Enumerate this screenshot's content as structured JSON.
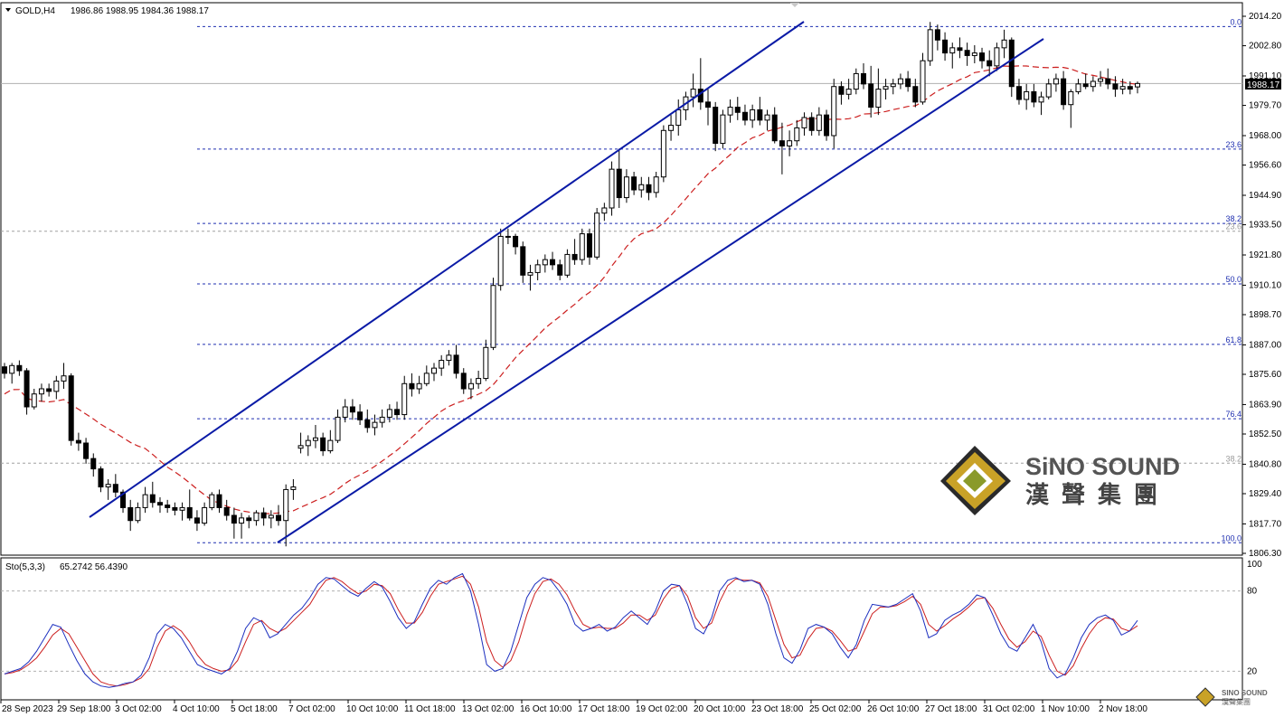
{
  "header": {
    "symbol": "GOLD,H4",
    "ohlc": "1986.86 1988.95 1984.36 1988.17",
    "price_tag": "1988.17"
  },
  "indicator": {
    "name": "Sto(5,3,3)",
    "values": "65.2742 56.4390",
    "levels": [
      "100",
      "80",
      "20"
    ]
  },
  "logo": {
    "line1": "SiNO SOUND",
    "line2": "漢聲集團",
    "small1": "SINO SOUND",
    "small2": "漢聲集團"
  },
  "colors": {
    "up": "#ffffff",
    "down": "#000000",
    "channel": "#0a1aa6",
    "fib": "#1f2fb0",
    "ma": "#cc1f1f",
    "stoch_main": "#1c2fbf",
    "stoch_signal": "#cc1f1f",
    "logo_gold": "#c9a227"
  },
  "chart_data": {
    "type": "candlestick",
    "price_axis": {
      "ticks": [
        "2014.20",
        "2002.80",
        "1991.10",
        "1979.70",
        "1968.00",
        "1956.60",
        "1944.90",
        "1933.50",
        "1921.80",
        "1910.10",
        "1898.70",
        "1887.00",
        "1875.60",
        "1863.90",
        "1852.50",
        "1840.80",
        "1829.40",
        "1817.70",
        "1806.30"
      ],
      "range": [
        1803,
        2019
      ]
    },
    "time_axis": {
      "ticks": [
        "28 Sep 2023",
        "29 Sep 18:00",
        "3 Oct 02:00",
        "4 Oct 10:00",
        "5 Oct 18:00",
        "7 Oct 02:00",
        "10 Oct 10:00",
        "11 Oct 18:00",
        "13 Oct 02:00",
        "16 Oct 10:00",
        "17 Oct 18:00",
        "19 Oct 02:00",
        "20 Oct 10:00",
        "23 Oct 18:00",
        "25 Oct 02:00",
        "26 Oct 10:00",
        "27 Oct 18:00",
        "31 Oct 02:00",
        "1 Nov 10:00",
        "2 Nov 18:00"
      ]
    },
    "fibonacci_1": [
      {
        "label": "0.0",
        "price": 2010.2
      },
      {
        "label": "23.6",
        "price": 1962.8
      },
      {
        "label": "38.2",
        "price": 1934.0
      },
      {
        "label": "50.0",
        "price": 1910.6
      },
      {
        "label": "61.8",
        "price": 1887.2
      },
      {
        "label": "76.4",
        "price": 1858.4
      },
      {
        "label": "100.0",
        "price": 1810.4
      }
    ],
    "fibonacci_2": [
      {
        "label": "23.6",
        "price": 1931.0
      },
      {
        "label": "38.2",
        "price": 1841.2
      }
    ],
    "current_price": 1988.17,
    "candles": [
      [
        1878.5,
        1880,
        1874,
        1876
      ],
      [
        1876,
        1880,
        1872,
        1879
      ],
      [
        1879,
        1881,
        1875,
        1877
      ],
      [
        1877,
        1878,
        1860,
        1863
      ],
      [
        1863,
        1870,
        1862,
        1868
      ],
      [
        1868,
        1872,
        1865,
        1870
      ],
      [
        1870,
        1872,
        1867,
        1869
      ],
      [
        1869,
        1875,
        1866,
        1873
      ],
      [
        1873,
        1880,
        1870,
        1875
      ],
      [
        1875,
        1876,
        1848,
        1850
      ],
      [
        1850,
        1853,
        1846,
        1849
      ],
      [
        1849,
        1851,
        1841,
        1843
      ],
      [
        1843,
        1845,
        1836,
        1839
      ],
      [
        1839,
        1840,
        1830,
        1832
      ],
      [
        1832,
        1835,
        1827,
        1833
      ],
      [
        1833,
        1837,
        1828,
        1830
      ],
      [
        1830,
        1831,
        1822,
        1824
      ],
      [
        1824,
        1827,
        1815,
        1819
      ],
      [
        1819,
        1826,
        1818,
        1824
      ],
      [
        1824,
        1832,
        1822,
        1829
      ],
      [
        1829,
        1834,
        1824,
        1826
      ],
      [
        1826,
        1828,
        1822,
        1825
      ],
      [
        1825,
        1827,
        1822,
        1824
      ],
      [
        1824,
        1826,
        1821,
        1823
      ],
      [
        1823,
        1826,
        1819,
        1824
      ],
      [
        1824,
        1831,
        1819,
        1820
      ],
      [
        1820,
        1823,
        1815,
        1818
      ],
      [
        1818,
        1826,
        1817,
        1824
      ],
      [
        1824,
        1830,
        1823,
        1829
      ],
      [
        1829,
        1831,
        1822,
        1824
      ],
      [
        1824,
        1827,
        1819,
        1821
      ],
      [
        1821,
        1824,
        1812,
        1818
      ],
      [
        1818,
        1822,
        1812,
        1820
      ],
      [
        1820,
        1821,
        1816,
        1819
      ],
      [
        1819,
        1823,
        1817,
        1822
      ],
      [
        1822,
        1824,
        1817,
        1820
      ],
      [
        1820,
        1823,
        1816,
        1821
      ],
      [
        1821,
        1825,
        1817,
        1819
      ],
      [
        1819,
        1833,
        1809,
        1831
      ],
      [
        1831,
        1835,
        1827,
        1832
      ],
      [
        1847,
        1853,
        1845,
        1848
      ],
      [
        1848,
        1852,
        1844,
        1850
      ],
      [
        1850,
        1856,
        1847,
        1851
      ],
      [
        1851,
        1853,
        1844,
        1846
      ],
      [
        1846,
        1854,
        1845,
        1850
      ],
      [
        1850,
        1862,
        1849,
        1859
      ],
      [
        1859,
        1866,
        1857,
        1863
      ],
      [
        1863,
        1866,
        1858,
        1861
      ],
      [
        1861,
        1864,
        1856,
        1858
      ],
      [
        1858,
        1862,
        1853,
        1855
      ],
      [
        1855,
        1860,
        1852,
        1857
      ],
      [
        1857,
        1862,
        1855,
        1859
      ],
      [
        1859,
        1864,
        1857,
        1862
      ],
      [
        1862,
        1865,
        1858,
        1860
      ],
      [
        1860,
        1875,
        1858,
        1872
      ],
      [
        1872,
        1876,
        1867,
        1870
      ],
      [
        1870,
        1875,
        1868,
        1872
      ],
      [
        1872,
        1879,
        1871,
        1876
      ],
      [
        1876,
        1880,
        1873,
        1878
      ],
      [
        1878,
        1883,
        1875,
        1881
      ],
      [
        1881,
        1885,
        1879,
        1883
      ],
      [
        1883,
        1887,
        1874,
        1876
      ],
      [
        1876,
        1878,
        1868,
        1870
      ],
      [
        1870,
        1874,
        1866,
        1872
      ],
      [
        1872,
        1877,
        1870,
        1874
      ],
      [
        1874,
        1889,
        1873,
        1886
      ],
      [
        1886,
        1913,
        1885,
        1910
      ],
      [
        1910,
        1932,
        1908,
        1929
      ],
      [
        1929,
        1932,
        1926,
        1929
      ],
      [
        1929,
        1930,
        1922,
        1925
      ],
      [
        1925,
        1927,
        1911,
        1914
      ],
      [
        1914,
        1918,
        1908,
        1915
      ],
      [
        1915,
        1920,
        1912,
        1918
      ],
      [
        1918,
        1922,
        1915,
        1920
      ],
      [
        1920,
        1923,
        1916,
        1918
      ],
      [
        1918,
        1920,
        1912,
        1914
      ],
      [
        1914,
        1924,
        1913,
        1922
      ],
      [
        1922,
        1928,
        1918,
        1920
      ],
      [
        1920,
        1932,
        1918,
        1930
      ],
      [
        1930,
        1932,
        1918,
        1921
      ],
      [
        1921,
        1940,
        1920,
        1938
      ],
      [
        1938,
        1942,
        1935,
        1940
      ],
      [
        1940,
        1958,
        1937,
        1955
      ],
      [
        1955,
        1963,
        1940,
        1944
      ],
      [
        1944,
        1955,
        1942,
        1952
      ],
      [
        1952,
        1954,
        1945,
        1947
      ],
      [
        1947,
        1952,
        1944,
        1949
      ],
      [
        1949,
        1952,
        1943,
        1946
      ],
      [
        1946,
        1954,
        1944,
        1952
      ],
      [
        1952,
        1972,
        1950,
        1970
      ],
      [
        1970,
        1976,
        1966,
        1972
      ],
      [
        1972,
        1982,
        1968,
        1978
      ],
      [
        1978,
        1985,
        1974,
        1983
      ],
      [
        1983,
        1992,
        1979,
        1986
      ],
      [
        1986,
        1998,
        1978,
        1981
      ],
      [
        1981,
        1986,
        1972,
        1979
      ],
      [
        1979,
        1981,
        1962,
        1965
      ],
      [
        1965,
        1978,
        1963,
        1976
      ],
      [
        1976,
        1982,
        1973,
        1979
      ],
      [
        1979,
        1983,
        1974,
        1977
      ],
      [
        1977,
        1980,
        1972,
        1974
      ],
      [
        1974,
        1980,
        1971,
        1978
      ],
      [
        1978,
        1983,
        1972,
        1974
      ],
      [
        1974,
        1978,
        1970,
        1976
      ],
      [
        1976,
        1979,
        1965,
        1966
      ],
      [
        1966,
        1973,
        1953,
        1964
      ],
      [
        1964,
        1970,
        1960,
        1966
      ],
      [
        1966,
        1974,
        1964,
        1971
      ],
      [
        1971,
        1977,
        1968,
        1975
      ],
      [
        1975,
        1977,
        1968,
        1970
      ],
      [
        1970,
        1979,
        1968,
        1976
      ],
      [
        1976,
        1978,
        1966,
        1968
      ],
      [
        1968,
        1990,
        1963,
        1987
      ],
      [
        1987,
        1989,
        1980,
        1984
      ],
      [
        1984,
        1990,
        1982,
        1986
      ],
      [
        1986,
        1994,
        1984,
        1992
      ],
      [
        1992,
        1996,
        1986,
        1988
      ],
      [
        1988,
        1995,
        1975,
        1979
      ],
      [
        1979,
        1994,
        1976,
        1986
      ],
      [
        1986,
        1990,
        1982,
        1987
      ],
      [
        1987,
        1990,
        1984,
        1988
      ],
      [
        1988,
        1992,
        1986,
        1990
      ],
      [
        1990,
        1993,
        1985,
        1987
      ],
      [
        1987,
        1990,
        1979,
        1981
      ],
      [
        1981,
        2000,
        1980,
        1997
      ],
      [
        1997,
        2012,
        1995,
        2009
      ],
      [
        2009,
        2011,
        2001,
        2005
      ],
      [
        2005,
        2008,
        1997,
        2000
      ],
      [
        2000,
        2004,
        1994,
        2002
      ],
      [
        2002,
        2006,
        1998,
        2001
      ],
      [
        2001,
        2004,
        1995,
        1999
      ],
      [
        1999,
        2003,
        1996,
        2000
      ],
      [
        2000,
        2002,
        1994,
        1997
      ],
      [
        1997,
        2001,
        1991,
        1995
      ],
      [
        1995,
        2004,
        1993,
        2002
      ],
      [
        2002,
        2009,
        1998,
        2005
      ],
      [
        2005,
        2006,
        1983,
        1987
      ],
      [
        1987,
        1990,
        1980,
        1982
      ],
      [
        1982,
        1988,
        1978,
        1985
      ],
      [
        1985,
        1988,
        1979,
        1981
      ],
      [
        1981,
        1985,
        1976,
        1983
      ],
      [
        1983,
        1990,
        1982,
        1988
      ],
      [
        1988,
        1992,
        1985,
        1990
      ],
      [
        1990,
        1993,
        1978,
        1980
      ],
      [
        1980,
        1986,
        1971,
        1985
      ],
      [
        1985,
        1990,
        1984,
        1988
      ],
      [
        1988,
        1992,
        1986,
        1987
      ],
      [
        1987,
        1991,
        1985,
        1989
      ],
      [
        1989,
        1993,
        1987,
        1990
      ],
      [
        1990,
        1994,
        1986,
        1988
      ],
      [
        1988,
        1991,
        1983,
        1986
      ],
      [
        1986,
        1990,
        1984,
        1987
      ],
      [
        1987,
        1989,
        1984,
        1986
      ],
      [
        1986.86,
        1988.95,
        1984.36,
        1988.17
      ]
    ],
    "moving_average_note": "red dashed moving average",
    "stochastic": {
      "main": [
        18,
        20,
        22,
        27,
        35,
        45,
        55,
        53,
        40,
        28,
        18,
        12,
        9,
        8,
        9,
        11,
        12,
        17,
        30,
        48,
        55,
        52,
        45,
        35,
        25,
        22,
        20,
        18,
        22,
        35,
        52,
        60,
        57,
        45,
        48,
        55,
        62,
        67,
        75,
        85,
        90,
        89,
        84,
        79,
        76,
        82,
        87,
        83,
        72,
        60,
        52,
        57,
        70,
        82,
        88,
        85,
        90,
        93,
        80,
        55,
        25,
        20,
        22,
        35,
        55,
        75,
        85,
        90,
        88,
        80,
        70,
        55,
        50,
        52,
        55,
        50,
        53,
        60,
        65,
        60,
        55,
        65,
        80,
        85,
        84,
        70,
        52,
        48,
        60,
        80,
        88,
        90,
        87,
        88,
        85,
        70,
        48,
        30,
        26,
        36,
        52,
        55,
        53,
        48,
        38,
        30,
        40,
        58,
        70,
        69,
        68,
        70,
        74,
        78,
        65,
        45,
        48,
        58,
        62,
        65,
        70,
        77,
        75,
        62,
        48,
        38,
        35,
        45,
        55,
        42,
        22,
        15,
        18,
        30,
        45,
        55,
        60,
        62,
        58,
        47,
        50,
        58
      ],
      "signal": [
        18,
        19,
        21,
        25,
        30,
        38,
        47,
        52,
        48,
        38,
        28,
        18,
        12,
        10,
        9,
        10,
        12,
        15,
        22,
        38,
        50,
        54,
        50,
        42,
        32,
        25,
        22,
        20,
        21,
        28,
        42,
        55,
        58,
        52,
        49,
        52,
        58,
        64,
        70,
        80,
        88,
        90,
        87,
        82,
        78,
        80,
        85,
        84,
        78,
        66,
        56,
        56,
        64,
        76,
        85,
        87,
        89,
        91,
        85,
        68,
        42,
        28,
        23,
        28,
        42,
        62,
        78,
        87,
        89,
        85,
        77,
        65,
        55,
        52,
        53,
        52,
        52,
        56,
        62,
        62,
        58,
        62,
        74,
        82,
        84,
        76,
        60,
        52,
        56,
        72,
        84,
        89,
        88,
        88,
        86,
        76,
        58,
        40,
        30,
        32,
        44,
        52,
        53,
        50,
        43,
        35,
        37,
        50,
        63,
        68,
        68,
        69,
        72,
        76,
        70,
        55,
        50,
        54,
        59,
        63,
        68,
        74,
        75,
        67,
        55,
        44,
        38,
        42,
        50,
        46,
        32,
        20,
        17,
        24,
        37,
        48,
        56,
        60,
        59,
        52,
        50,
        54
      ]
    }
  }
}
